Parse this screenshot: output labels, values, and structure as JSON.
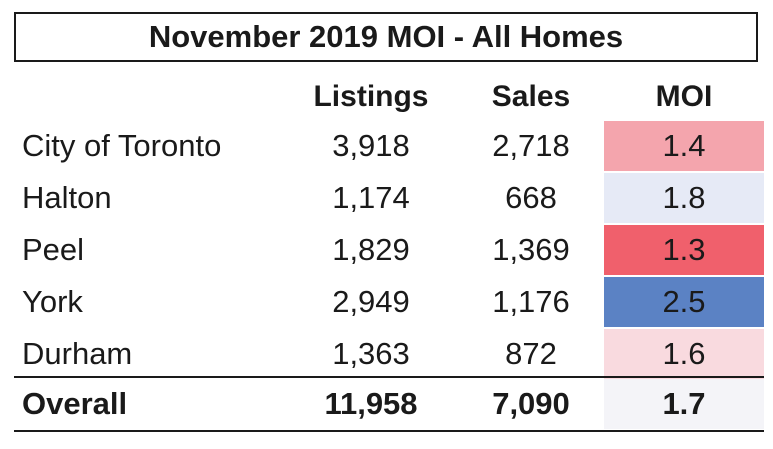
{
  "chart_data": {
    "type": "table",
    "title": "November 2019 MOI - All Homes",
    "columns": [
      "Listings",
      "Sales",
      "MOI"
    ],
    "rows": [
      {
        "region": "City of Toronto",
        "listings": "3,918",
        "sales": "2,718",
        "moi": "1.4",
        "moi_color": "#f4a5ad"
      },
      {
        "region": "Halton",
        "listings": "1,174",
        "sales": "668",
        "moi": "1.8",
        "moi_color": "#e6eaf6"
      },
      {
        "region": "Peel",
        "listings": "1,829",
        "sales": "1,369",
        "moi": "1.3",
        "moi_color": "#f0606c"
      },
      {
        "region": "York",
        "listings": "2,949",
        "sales": "1,176",
        "moi": "2.5",
        "moi_color": "#5b82c4"
      },
      {
        "region": "Durham",
        "listings": "1,363",
        "sales": "872",
        "moi": "1.6",
        "moi_color": "#f9dadf"
      }
    ],
    "total": {
      "region": "Overall",
      "listings": "11,958",
      "sales": "7,090",
      "moi": "1.7",
      "moi_color": "#f4f4f8"
    }
  }
}
